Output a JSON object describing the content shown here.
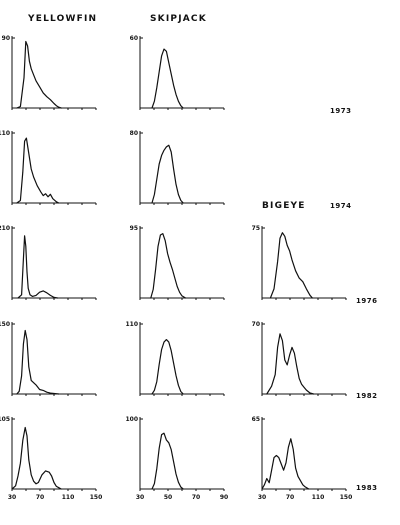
{
  "species_headers": [
    "YELLOWFIN",
    "SKIPJACK",
    "BIGEYE"
  ],
  "years": [
    "1973",
    "1974",
    "1976",
    "1982",
    "1983"
  ],
  "chart_data": {
    "type": "line",
    "description_units": "x = fish length (cm), y = relative frequency; only the y-axis maximum is printed per panel",
    "xlim": [
      30,
      170
    ],
    "x_ticks": {
      "YELLOWFIN": [
        "30",
        "70",
        "110",
        "150"
      ],
      "SKIPJACK": [
        "30",
        "50",
        "70",
        "90"
      ],
      "BIGEYE": [
        "30",
        "70",
        "110",
        "150"
      ]
    },
    "panels": [
      {
        "species": "YELLOWFIN",
        "year": "1973",
        "ymax_label": "90",
        "ymax": 90,
        "x": [
          38,
          44,
          50,
          53,
          56,
          59,
          62,
          66,
          70,
          76,
          82,
          88,
          94,
          100,
          104,
          108,
          112
        ],
        "y": [
          0,
          2,
          40,
          88,
          82,
          62,
          52,
          44,
          36,
          28,
          20,
          15,
          11,
          6,
          3,
          1,
          0
        ]
      },
      {
        "species": "SKIPJACK",
        "year": "1973",
        "ymax_label": "60",
        "ymax": 60,
        "x": [
          40,
          42,
          44,
          46,
          48,
          50,
          52,
          54,
          56,
          58,
          60,
          62,
          64,
          66
        ],
        "y": [
          0,
          6,
          18,
          32,
          46,
          52,
          50,
          40,
          30,
          20,
          12,
          6,
          2,
          0
        ]
      },
      {
        "species": "YELLOWFIN",
        "year": "1974",
        "ymax_label": "110",
        "ymax": 110,
        "x": [
          38,
          44,
          48,
          51,
          54,
          58,
          62,
          66,
          72,
          78,
          82,
          86,
          90,
          94,
          98,
          104,
          108
        ],
        "y": [
          0,
          4,
          50,
          100,
          105,
          80,
          55,
          42,
          28,
          18,
          12,
          15,
          10,
          14,
          7,
          2,
          0
        ]
      },
      {
        "species": "SKIPJACK",
        "year": "1974",
        "ymax_label": "80",
        "ymax": 80,
        "x": [
          40,
          42,
          44,
          46,
          48,
          50,
          52,
          54,
          56,
          58,
          60,
          62,
          64,
          66
        ],
        "y": [
          0,
          10,
          28,
          46,
          56,
          62,
          66,
          68,
          60,
          40,
          22,
          10,
          3,
          0
        ]
      },
      {
        "species": "YELLOWFIN",
        "year": "1976",
        "ymax_label": "210",
        "ymax": 210,
        "x": [
          40,
          46,
          49,
          51,
          53,
          55,
          57,
          60,
          64,
          70,
          76,
          82,
          88,
          94,
          100,
          106
        ],
        "y": [
          0,
          10,
          120,
          192,
          160,
          80,
          30,
          10,
          5,
          8,
          18,
          22,
          16,
          8,
          2,
          0
        ]
      },
      {
        "species": "SKIPJACK",
        "year": "1976",
        "ymax_label": "95",
        "ymax": 95,
        "x": [
          39,
          41,
          43,
          45,
          47,
          49,
          51,
          53,
          55,
          57,
          59,
          61,
          63,
          65,
          68
        ],
        "y": [
          0,
          12,
          40,
          72,
          88,
          90,
          80,
          62,
          50,
          40,
          28,
          16,
          8,
          3,
          0
        ]
      },
      {
        "species": "BIGEYE",
        "year": "1976",
        "ymax_label": "75",
        "ymax": 75,
        "x": [
          44,
          50,
          56,
          60,
          64,
          68,
          72,
          76,
          80,
          86,
          92,
          98,
          104,
          110,
          114
        ],
        "y": [
          0,
          10,
          40,
          66,
          72,
          68,
          58,
          52,
          42,
          30,
          22,
          18,
          10,
          3,
          0
        ]
      },
      {
        "species": "YELLOWFIN",
        "year": "1982",
        "ymax_label": "150",
        "ymax": 150,
        "x": [
          38,
          42,
          46,
          49,
          52,
          55,
          58,
          62,
          66,
          70,
          76,
          82,
          88,
          94,
          100,
          108
        ],
        "y": [
          0,
          6,
          40,
          110,
          140,
          120,
          60,
          30,
          25,
          20,
          10,
          8,
          4,
          2,
          1,
          0
        ]
      },
      {
        "species": "SKIPJACK",
        "year": "1982",
        "ymax_label": "110",
        "ymax": 110,
        "x": [
          40,
          42,
          44,
          46,
          48,
          50,
          52,
          54,
          56,
          58,
          60,
          62,
          64,
          66
        ],
        "y": [
          0,
          6,
          20,
          48,
          72,
          84,
          88,
          84,
          70,
          50,
          30,
          14,
          4,
          0
        ]
      },
      {
        "species": "BIGEYE",
        "year": "1982",
        "ymax_label": "70",
        "ymax": 70,
        "x": [
          38,
          46,
          52,
          56,
          60,
          64,
          68,
          72,
          76,
          80,
          84,
          88,
          92,
          96,
          100,
          104,
          110,
          116
        ],
        "y": [
          0,
          8,
          20,
          48,
          62,
          55,
          35,
          30,
          40,
          48,
          42,
          28,
          16,
          10,
          7,
          4,
          1,
          0
        ]
      },
      {
        "species": "YELLOWFIN",
        "year": "1983",
        "ymax_label": "105",
        "ymax": 105,
        "x": [
          30,
          36,
          40,
          44,
          48,
          52,
          55,
          58,
          62,
          66,
          70,
          74,
          80,
          86,
          92,
          96,
          100,
          104,
          108,
          112
        ],
        "y": [
          0,
          5,
          20,
          40,
          75,
          95,
          82,
          45,
          22,
          12,
          8,
          10,
          22,
          28,
          26,
          20,
          10,
          4,
          2,
          0
        ]
      },
      {
        "species": "SKIPJACK",
        "year": "1983",
        "ymax_label": "100",
        "ymax": 100,
        "x": [
          40,
          42,
          44,
          46,
          48,
          50,
          52,
          54,
          56,
          58,
          60,
          62,
          64,
          66
        ],
        "y": [
          0,
          8,
          30,
          60,
          80,
          82,
          72,
          68,
          58,
          40,
          22,
          10,
          3,
          0
        ]
      },
      {
        "species": "BIGEYE",
        "year": "1983",
        "ymax_label": "65",
        "ymax": 65,
        "x": [
          30,
          34,
          38,
          42,
          46,
          50,
          54,
          58,
          62,
          66,
          70,
          74,
          78,
          82,
          86,
          90,
          94,
          98,
          102,
          108
        ],
        "y": [
          0,
          4,
          10,
          6,
          18,
          30,
          32,
          30,
          24,
          18,
          25,
          40,
          48,
          38,
          20,
          12,
          8,
          4,
          2,
          0
        ]
      }
    ]
  }
}
